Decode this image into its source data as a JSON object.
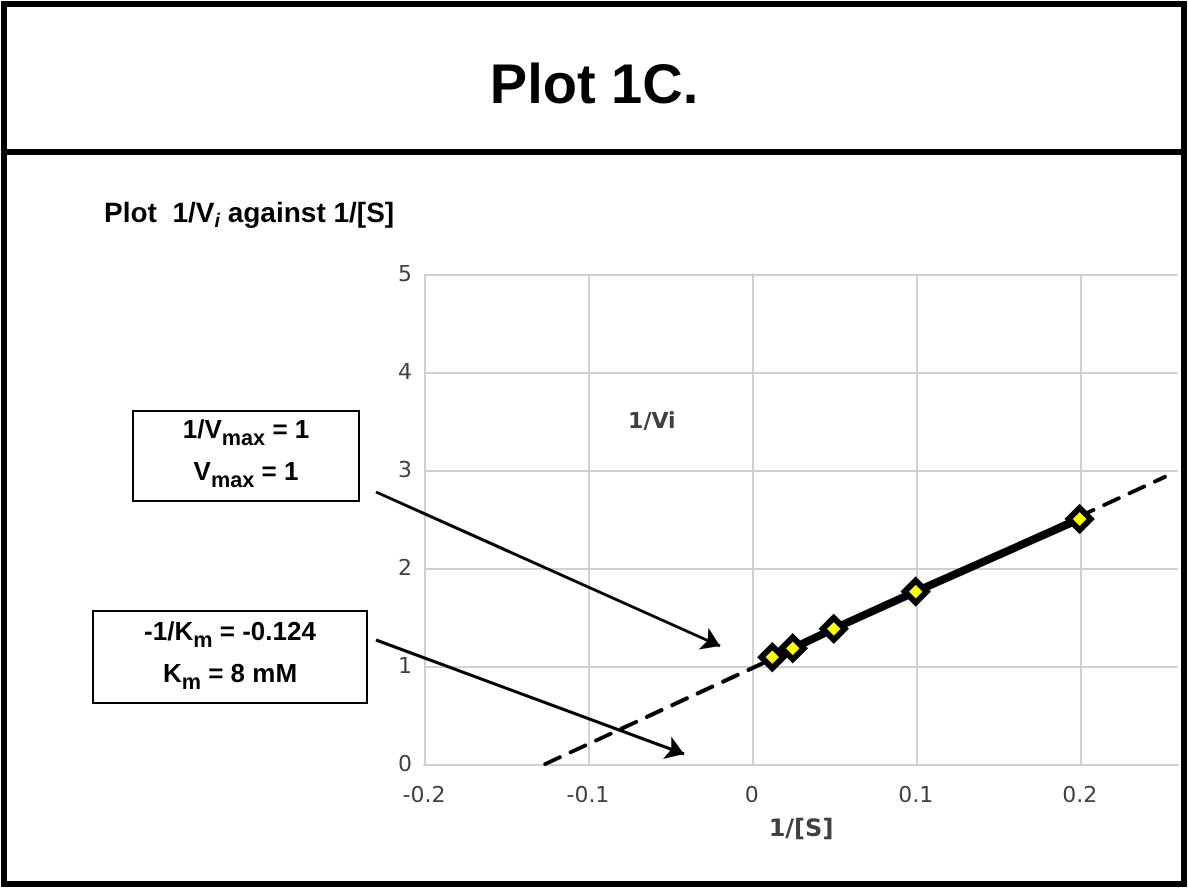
{
  "chart_data": {
    "type": "line",
    "title": "Plot 1C.",
    "subtitle": "Plot  1/V$_{i}$ against 1/[S]",
    "xlabel": "1/[S]",
    "ylabel": "1/Vi",
    "xlim": [
      -0.2,
      0.26
    ],
    "xticks": [
      -0.2,
      -0.1,
      0,
      0.1,
      0.2
    ],
    "ylim": [
      0,
      5
    ],
    "yticks": [
      0,
      1,
      2,
      3,
      4,
      5
    ],
    "grid": true,
    "series": [
      {
        "color": "#000000",
        "x": [
          -0.126,
          0.252
        ],
        "values": [
          0,
          2.93
        ],
        "line_style": "dashed",
        "marker": "none"
      },
      {
        "color": "#000000",
        "x": [
          0.0125,
          0.025,
          0.05,
          0.1,
          0.2
        ],
        "values": [
          1.09,
          1.18,
          1.38,
          1.76,
          2.5
        ],
        "line_style": "solid",
        "marker": "diamond"
      }
    ],
    "annotations": [
      "1/V$_{max}$ = 1\nV$_{max}$ = 1",
      "-1/K$_{m}$ = -0.124\nK$_{m}$ = 8 mM"
    ]
  }
}
